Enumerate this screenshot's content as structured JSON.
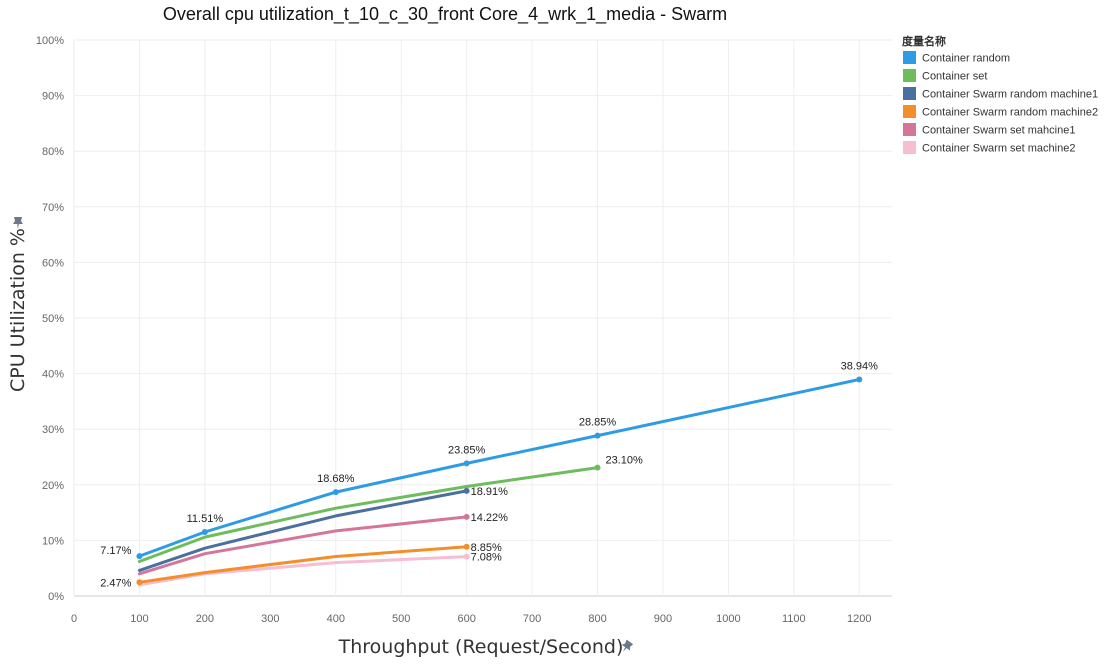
{
  "chart_data": {
    "type": "line",
    "title": "Overall cpu utilization_t_10_c_30_front Core_4_wrk_1_media - Swarm",
    "xlabel": "Throughput (Request/Second)",
    "ylabel": "CPU Utilization %",
    "xlim": [
      0,
      1250
    ],
    "ylim": [
      0,
      100
    ],
    "x_ticks": [
      "0",
      "100",
      "200",
      "300",
      "400",
      "500",
      "600",
      "700",
      "800",
      "900",
      "1000",
      "1100",
      "1200"
    ],
    "y_ticks": [
      "0%",
      "10%",
      "20%",
      "30%",
      "40%",
      "50%",
      "60%",
      "70%",
      "80%",
      "90%",
      "100%"
    ],
    "grid": true,
    "legend_position": "right",
    "legend_title": "度量名称",
    "series": [
      {
        "name": "Container random",
        "color": "#2e9be5",
        "x": [
          100,
          200,
          400,
          600,
          800,
          1200
        ],
        "y": [
          7.17,
          11.51,
          18.68,
          23.85,
          28.85,
          38.94
        ],
        "labels": [
          {
            "x": 100,
            "y": 7.17,
            "text": "7.17%",
            "pos": "left"
          },
          {
            "x": 200,
            "y": 11.51,
            "text": "11.51%",
            "pos": "above"
          },
          {
            "x": 400,
            "y": 18.68,
            "text": "18.68%",
            "pos": "above"
          },
          {
            "x": 600,
            "y": 23.85,
            "text": "23.85%",
            "pos": "above"
          },
          {
            "x": 800,
            "y": 28.85,
            "text": "28.85%",
            "pos": "above"
          },
          {
            "x": 1200,
            "y": 38.94,
            "text": "38.94%",
            "pos": "above"
          }
        ]
      },
      {
        "name": "Container set",
        "color": "#6dbd5e",
        "x": [
          100,
          200,
          400,
          600,
          800
        ],
        "y": [
          6.2,
          10.6,
          15.8,
          19.7,
          23.1
        ],
        "labels": [
          {
            "x": 800,
            "y": 23.1,
            "text": "23.10%",
            "pos": "right-above"
          }
        ]
      },
      {
        "name": "Container Swarm random machine1",
        "color": "#4a70a0",
        "x": [
          100,
          200,
          400,
          600
        ],
        "y": [
          4.6,
          8.6,
          14.4,
          18.91
        ],
        "labels": [
          {
            "x": 600,
            "y": 18.91,
            "text": "18.91%",
            "pos": "right"
          }
        ]
      },
      {
        "name": "Container Swarm random machine2",
        "color": "#f28e2b",
        "x": [
          100,
          200,
          400,
          600
        ],
        "y": [
          2.47,
          4.2,
          7.1,
          8.85
        ],
        "labels": [
          {
            "x": 100,
            "y": 2.47,
            "text": "2.47%",
            "pos": "left"
          },
          {
            "x": 600,
            "y": 8.85,
            "text": "8.85%",
            "pos": "right"
          }
        ]
      },
      {
        "name": "Container Swarm set mahcine1",
        "color": "#d4759a",
        "x": [
          100,
          200,
          400,
          600
        ],
        "y": [
          4.0,
          7.6,
          11.7,
          14.22
        ],
        "labels": [
          {
            "x": 600,
            "y": 14.22,
            "text": "14.22%",
            "pos": "right"
          }
        ]
      },
      {
        "name": "Container Swarm set machine2",
        "color": "#f7bdd0",
        "x": [
          100,
          200,
          400,
          600
        ],
        "y": [
          2.0,
          4.0,
          6.0,
          7.08
        ],
        "labels": [
          {
            "x": 600,
            "y": 7.08,
            "text": "7.08%",
            "pos": "right"
          }
        ]
      }
    ]
  }
}
